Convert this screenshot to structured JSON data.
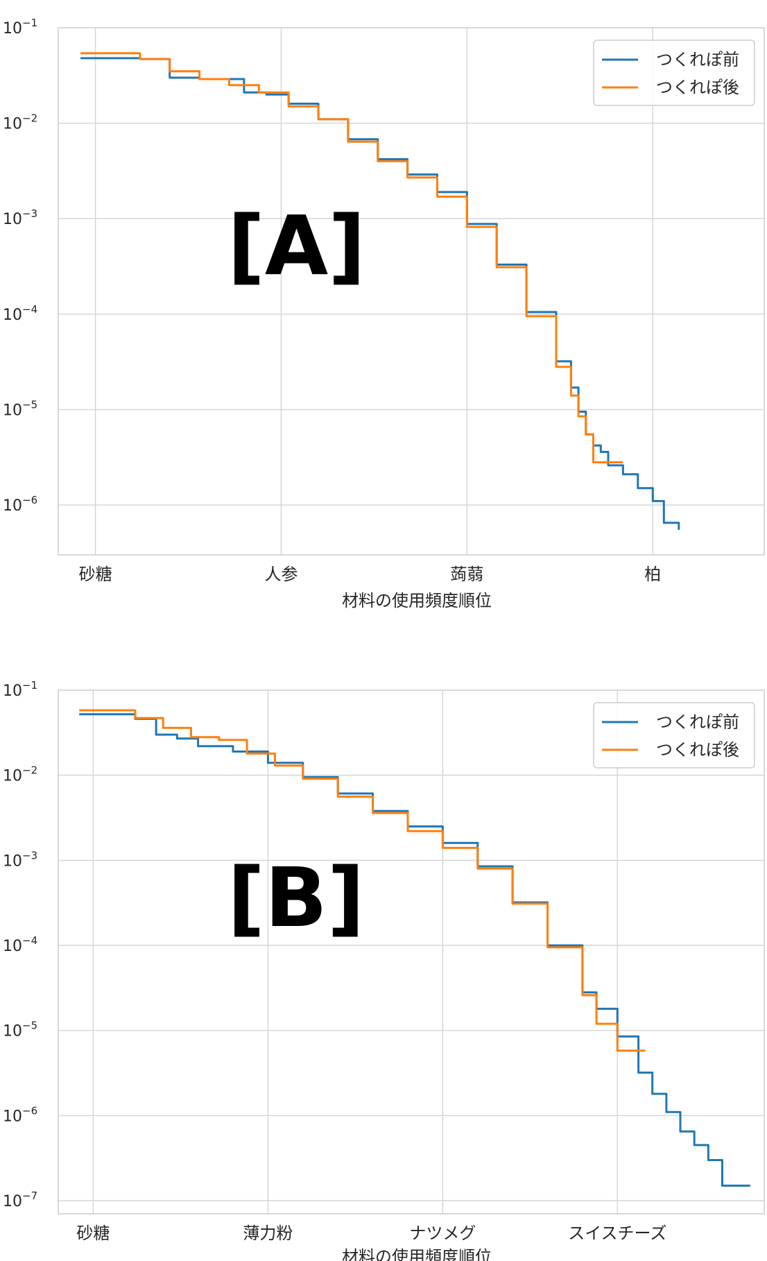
{
  "chart_data": [
    {
      "panel_tag": "[A]",
      "type": "line",
      "xlabel": "材料の使用頻度順位",
      "ylabel": "",
      "yscale": "log",
      "ylim": [
        3e-07,
        0.1
      ],
      "x_tick_labels": [
        "砂糖",
        "人参",
        "蒟蒻",
        "柏"
      ],
      "y_ticks": [
        {
          "base": "10",
          "exp": "−1",
          "value": 0.1
        },
        {
          "base": "10",
          "exp": "−2",
          "value": 0.01
        },
        {
          "base": "10",
          "exp": "−3",
          "value": 0.001
        },
        {
          "base": "10",
          "exp": "−4",
          "value": 0.0001
        },
        {
          "base": "10",
          "exp": "−5",
          "value": 1e-05
        },
        {
          "base": "10",
          "exp": "−6",
          "value": 1e-06
        }
      ],
      "grid": true,
      "legend_position": "top-right",
      "series": [
        {
          "name": "つくれぽ前",
          "color": "#1f77b4",
          "points": [
            [
              -2,
              0.048
            ],
            [
              2,
              0.048
            ],
            [
              6,
              0.047
            ],
            [
              10,
              0.03
            ],
            [
              14,
              0.029
            ],
            [
              18,
              0.029
            ],
            [
              20,
              0.021
            ],
            [
              23,
              0.02
            ],
            [
              26,
              0.016
            ],
            [
              30,
              0.011
            ],
            [
              34,
              0.0068
            ],
            [
              38,
              0.0042
            ],
            [
              42,
              0.0029
            ],
            [
              46,
              0.0019
            ],
            [
              50,
              0.00088
            ],
            [
              54,
              0.00033
            ],
            [
              58,
              0.000105
            ],
            [
              62,
              3.2e-05
            ],
            [
              64,
              1.7e-05
            ],
            [
              65,
              9.5e-06
            ],
            [
              66,
              5.5e-06
            ],
            [
              67,
              4.2e-06
            ],
            [
              68,
              3.6e-06
            ],
            [
              69,
              2.6e-06
            ],
            [
              71,
              2.1e-06
            ],
            [
              73,
              1.5e-06
            ],
            [
              75,
              1.1e-06
            ],
            [
              76.5,
              6.5e-07
            ],
            [
              78.5,
              5.5e-07
            ]
          ]
        },
        {
          "name": "つくれぽ後",
          "color": "#ff7f0e",
          "points": [
            [
              -2,
              0.054
            ],
            [
              2,
              0.054
            ],
            [
              6,
              0.047
            ],
            [
              10,
              0.035
            ],
            [
              14,
              0.029
            ],
            [
              18,
              0.025
            ],
            [
              22,
              0.021
            ],
            [
              26,
              0.015
            ],
            [
              30,
              0.011
            ],
            [
              34,
              0.0064
            ],
            [
              38,
              0.004
            ],
            [
              42,
              0.0027
            ],
            [
              46,
              0.0017
            ],
            [
              50,
              0.00082
            ],
            [
              54,
              0.00031
            ],
            [
              58,
              9.5e-05
            ],
            [
              62,
              2.8e-05
            ],
            [
              64,
              1.4e-05
            ],
            [
              65,
              8.5e-06
            ],
            [
              66,
              5.5e-06
            ],
            [
              67,
              2.8e-06
            ],
            [
              69,
              2.8e-06
            ],
            [
              71,
              2.8e-06
            ]
          ]
        }
      ]
    },
    {
      "panel_tag": "[B]",
      "type": "line",
      "xlabel": "材料の使用頻度順位",
      "ylabel": "",
      "yscale": "log",
      "ylim": [
        7e-08,
        0.1
      ],
      "x_tick_labels": [
        "砂糖",
        "薄力粉",
        "ナツメグ",
        "スイスチーズ"
      ],
      "y_ticks": [
        {
          "base": "10",
          "exp": "−1",
          "value": 0.1
        },
        {
          "base": "10",
          "exp": "−2",
          "value": 0.01
        },
        {
          "base": "10",
          "exp": "−3",
          "value": 0.001
        },
        {
          "base": "10",
          "exp": "−4",
          "value": 0.0001
        },
        {
          "base": "10",
          "exp": "−5",
          "value": 1e-05
        },
        {
          "base": "10",
          "exp": "−6",
          "value": 1e-06
        },
        {
          "base": "10",
          "exp": "−7",
          "value": 1e-07
        }
      ],
      "grid": true,
      "legend_position": "top-right",
      "series": [
        {
          "name": "つくれぽ前",
          "color": "#1f77b4",
          "points": [
            [
              -2,
              0.052
            ],
            [
              2,
              0.052
            ],
            [
              6,
              0.046
            ],
            [
              9,
              0.03
            ],
            [
              12,
              0.027
            ],
            [
              15,
              0.022
            ],
            [
              20,
              0.019
            ],
            [
              25,
              0.014
            ],
            [
              30,
              0.0095
            ],
            [
              35,
              0.0061
            ],
            [
              40,
              0.0038
            ],
            [
              45,
              0.0025
            ],
            [
              50,
              0.0016
            ],
            [
              55,
              0.00085
            ],
            [
              60,
              0.00032
            ],
            [
              65,
              0.0001
            ],
            [
              70,
              2.8e-05
            ],
            [
              72,
              1.8e-05
            ],
            [
              75,
              8.5e-06
            ],
            [
              78,
              3.2e-06
            ],
            [
              80,
              1.8e-06
            ],
            [
              82,
              1.1e-06
            ],
            [
              84,
              6.5e-07
            ],
            [
              86,
              4.5e-07
            ],
            [
              88,
              3e-07
            ],
            [
              90,
              1.5e-07
            ],
            [
              94,
              1.5e-07
            ]
          ]
        },
        {
          "name": "つくれぽ後",
          "color": "#ff7f0e",
          "points": [
            [
              -2,
              0.058
            ],
            [
              2,
              0.058
            ],
            [
              6,
              0.047
            ],
            [
              10,
              0.036
            ],
            [
              14,
              0.028
            ],
            [
              18,
              0.026
            ],
            [
              22,
              0.018
            ],
            [
              26,
              0.013
            ],
            [
              30,
              0.0091
            ],
            [
              35,
              0.0056
            ],
            [
              40,
              0.0036
            ],
            [
              45,
              0.0022
            ],
            [
              50,
              0.0014
            ],
            [
              55,
              0.0008
            ],
            [
              60,
              0.00031
            ],
            [
              65,
              9.5e-05
            ],
            [
              70,
              2.6e-05
            ],
            [
              72,
              1.2e-05
            ],
            [
              75,
              5.8e-06
            ],
            [
              77,
              5.8e-06
            ],
            [
              79,
              5.8e-06
            ]
          ]
        }
      ]
    }
  ]
}
